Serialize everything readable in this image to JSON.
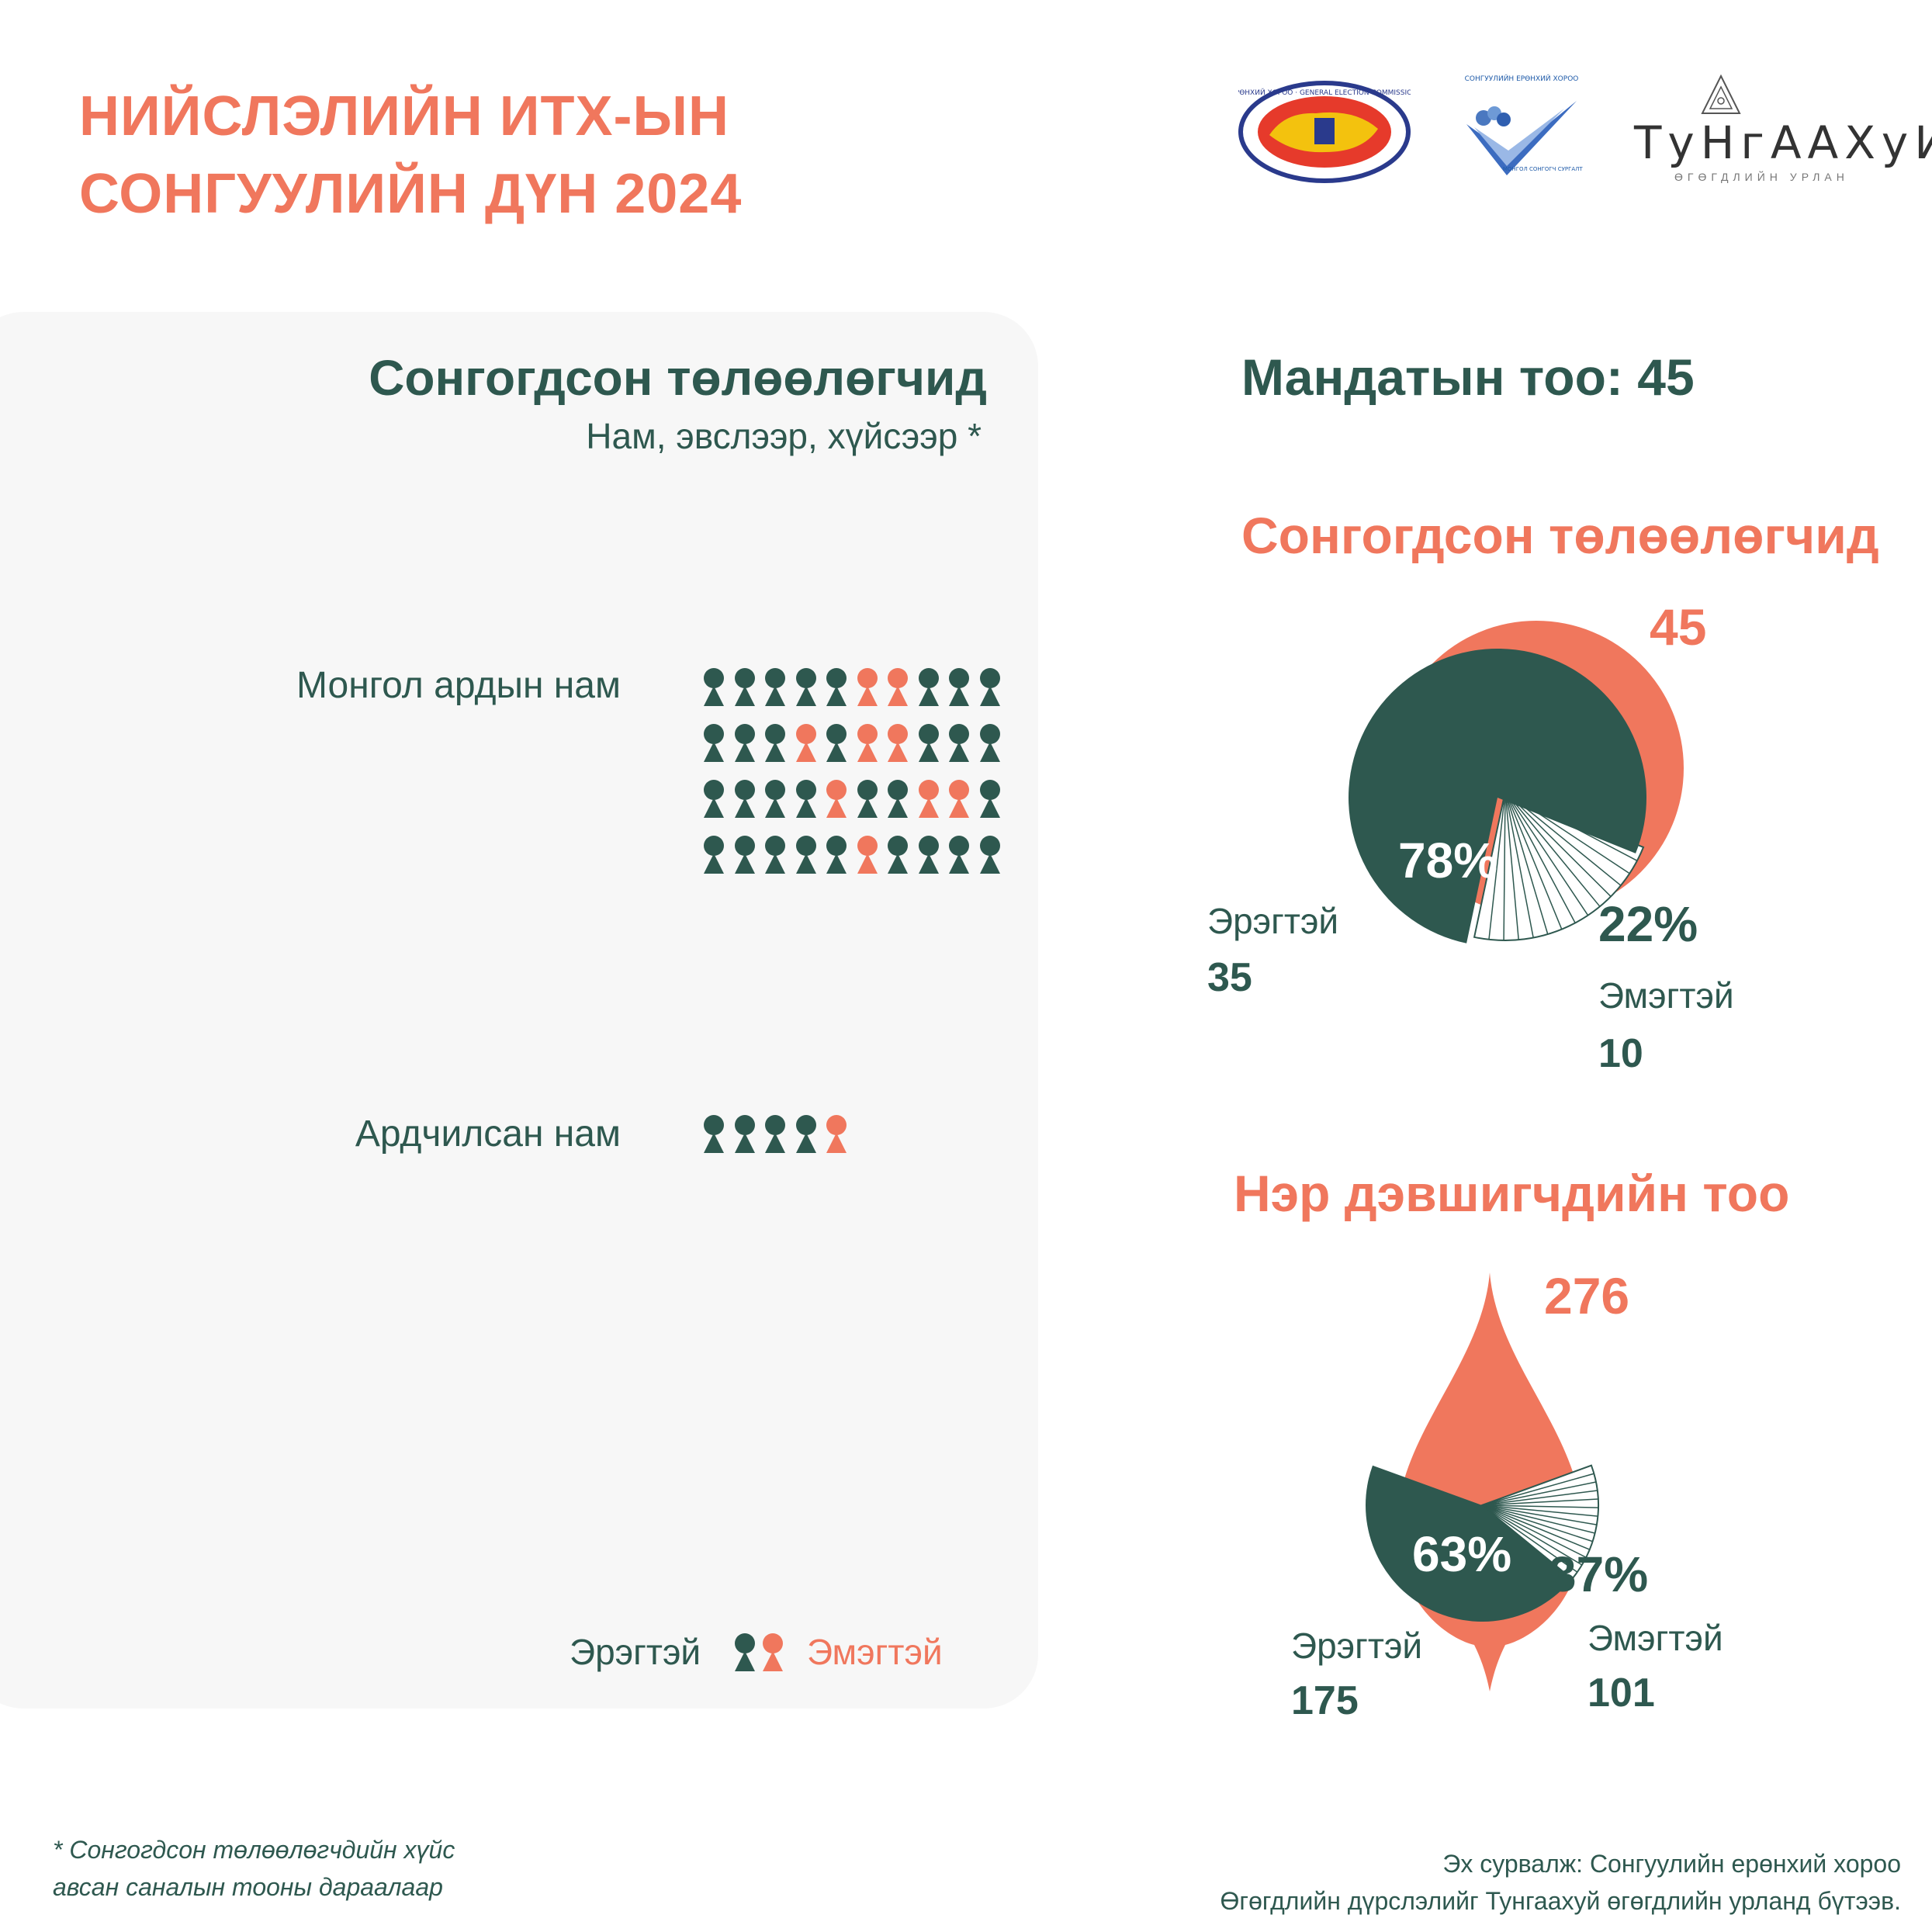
{
  "title": {
    "line1": "НИЙСЛЭЛИЙН ИТХ-ЫН",
    "line2": "СОНГУУЛИЙН ДҮН 2024"
  },
  "logos": {
    "gec_text": "СОНГУУЛИЙН ЕРӨНХИЙ ХОРОО · GENERAL ELECTION COMMISSION OF MONGOLIA",
    "edu_top": "СОНГУУЛИЙН ЕРӨНХИЙ ХОРОО",
    "edu_bottom": "МОНГОЛ СОНГОГЧ СУРГАЛТЫН",
    "tungaa_name": "ТуНгААХуИ",
    "tungaa_sub": "ӨГӨГДЛИЙН УРЛАН"
  },
  "left_panel": {
    "heading": "Сонгогдсон төлөөлөгчид",
    "subheading": "Нам, эвслээр, хүйсээр *",
    "parties": [
      {
        "name": "Монгол ардын нам",
        "rows": [
          [
            "m",
            "m",
            "m",
            "m",
            "m",
            "f",
            "f",
            "m",
            "m",
            "m"
          ],
          [
            "m",
            "m",
            "m",
            "f",
            "m",
            "f",
            "f",
            "m",
            "m",
            "m"
          ],
          [
            "m",
            "m",
            "m",
            "m",
            "f",
            "m",
            "m",
            "f",
            "f",
            "m"
          ],
          [
            "m",
            "m",
            "m",
            "m",
            "m",
            "f",
            "m",
            "m",
            "m",
            "m"
          ]
        ]
      },
      {
        "name": "Ардчилсан нам",
        "rows": [
          [
            "m",
            "m",
            "m",
            "m",
            "f"
          ]
        ]
      }
    ],
    "legend": {
      "male": "Эрэгтэй",
      "female": "Эмэгтэй"
    }
  },
  "mandate": "Мандатын тоо: 45",
  "colors": {
    "male": "#2e584f",
    "female": "#f0775d",
    "title": "#f0775d"
  },
  "chart_data": [
    {
      "type": "pie",
      "title": "Сонгогдсон төлөөлөгчид",
      "total": "45",
      "categories": [
        "Эрэгтэй",
        "Эмэгтэй"
      ],
      "values": [
        35,
        10
      ],
      "percent_labels": [
        "78%",
        "22%"
      ],
      "value_labels": [
        "35",
        "10"
      ]
    },
    {
      "type": "pie",
      "title": "Нэр дэвшигчдийн тоо",
      "total": "276",
      "categories": [
        "Эрэгтэй",
        "Эмэгтэй"
      ],
      "values": [
        175,
        101
      ],
      "percent_labels": [
        "63%",
        "37%"
      ],
      "value_labels": [
        "175",
        "101"
      ]
    }
  ],
  "footnote": {
    "line1": "* Сонгогдсон төлөөлөгчдийн хүйс",
    "line2": "авсан саналын тооны дараалаар"
  },
  "source": {
    "line1": "Эх сурвалж: Сонгуулийн ерөнхий хороо",
    "line2": "Өгөгдлийн дүрслэлийг Тунгаахуй өгөгдлийн урланд бүтээв."
  }
}
